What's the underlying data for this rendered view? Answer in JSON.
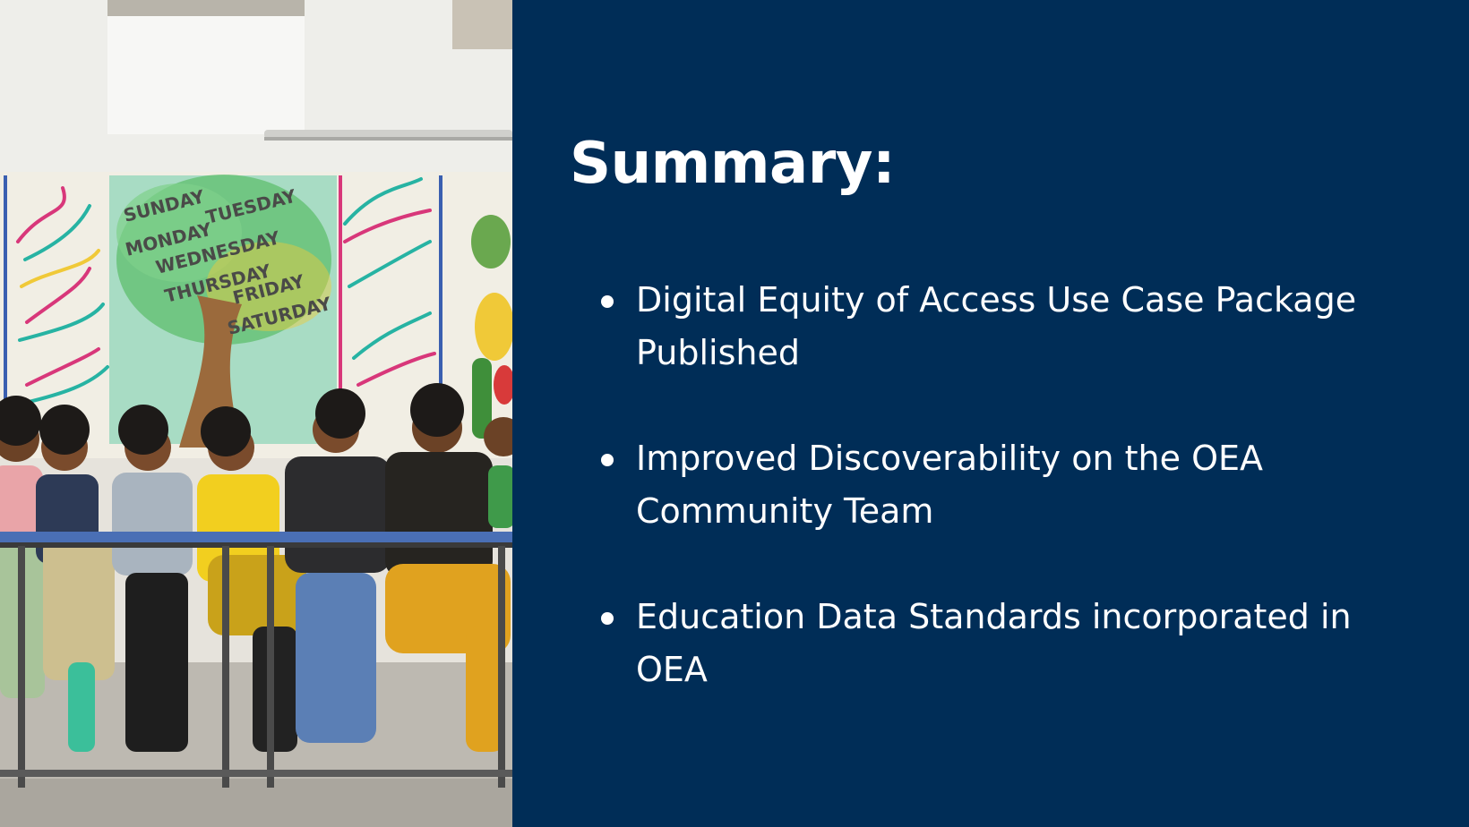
{
  "slide": {
    "photo": {
      "subject": "students-photo",
      "wall_text": [
        "SUNDAY",
        "MONDAY",
        "TUESDAY",
        "WEDNESDAY",
        "THURSDAY",
        "FRIDAY",
        "SATURDAY"
      ]
    },
    "title": "Summary:",
    "bullets": [
      {
        "text": "Digital Equity of Access Use Case Package Published"
      },
      {
        "text": "Improved Discoverability on the OEA Community Team"
      },
      {
        "text": "Education Data Standards incorporated in OEA"
      }
    ],
    "colors": {
      "panel_background": "#002d57",
      "text": "#ffffff"
    }
  }
}
